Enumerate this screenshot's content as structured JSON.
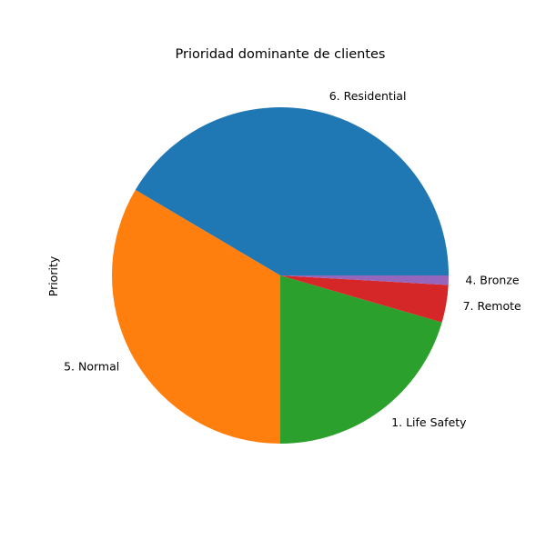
{
  "chart_data": {
    "type": "pie",
    "title": "Prioridad dominante de clientes",
    "ylabel": "Priority",
    "slices": [
      {
        "label": "6. Residential",
        "value": 41.5,
        "color": "#1f77b4"
      },
      {
        "label": "5. Normal",
        "value": 33.5,
        "color": "#ff7f0e"
      },
      {
        "label": "1. Life Safety",
        "value": 20.5,
        "color": "#2ca02c"
      },
      {
        "label": "7. Remote",
        "value": 3.6,
        "color": "#d62728"
      },
      {
        "label": "4. Bronze",
        "value": 0.9,
        "color": "#9467bd"
      }
    ]
  }
}
